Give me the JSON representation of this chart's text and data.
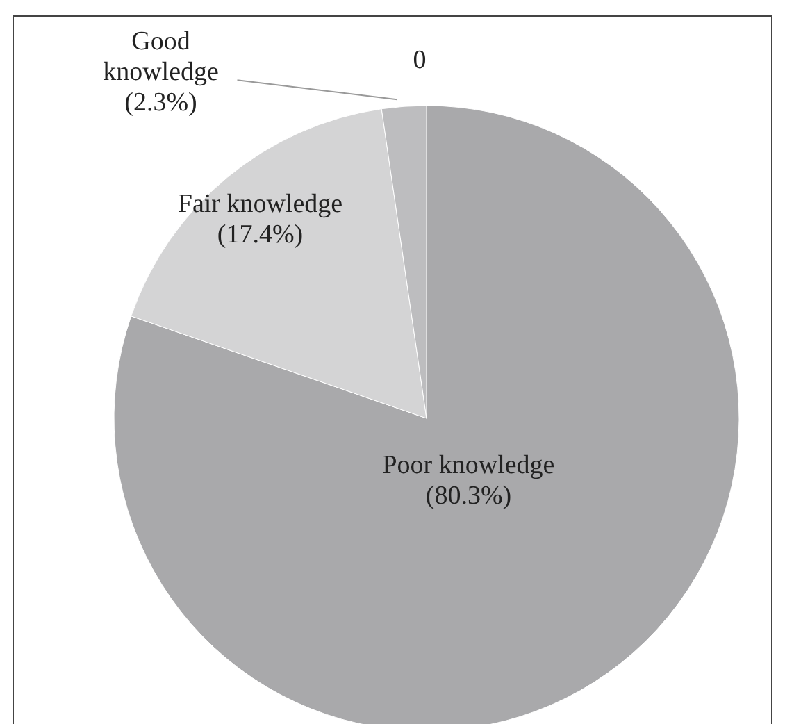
{
  "chart_data": {
    "type": "pie",
    "categories": [
      "Poor knowledge",
      "Fair knowledge",
      "Good knowledge",
      null
    ],
    "values": [
      80.3,
      17.4,
      2.3,
      0
    ],
    "colors": [
      "#a9a9ab",
      "#d4d4d5",
      "#bdbdbf",
      "#bdbdbf"
    ],
    "value_labels": [
      "(80.3%)",
      "(17.4%)",
      "(2.3%)",
      "0"
    ],
    "legend": false
  }
}
